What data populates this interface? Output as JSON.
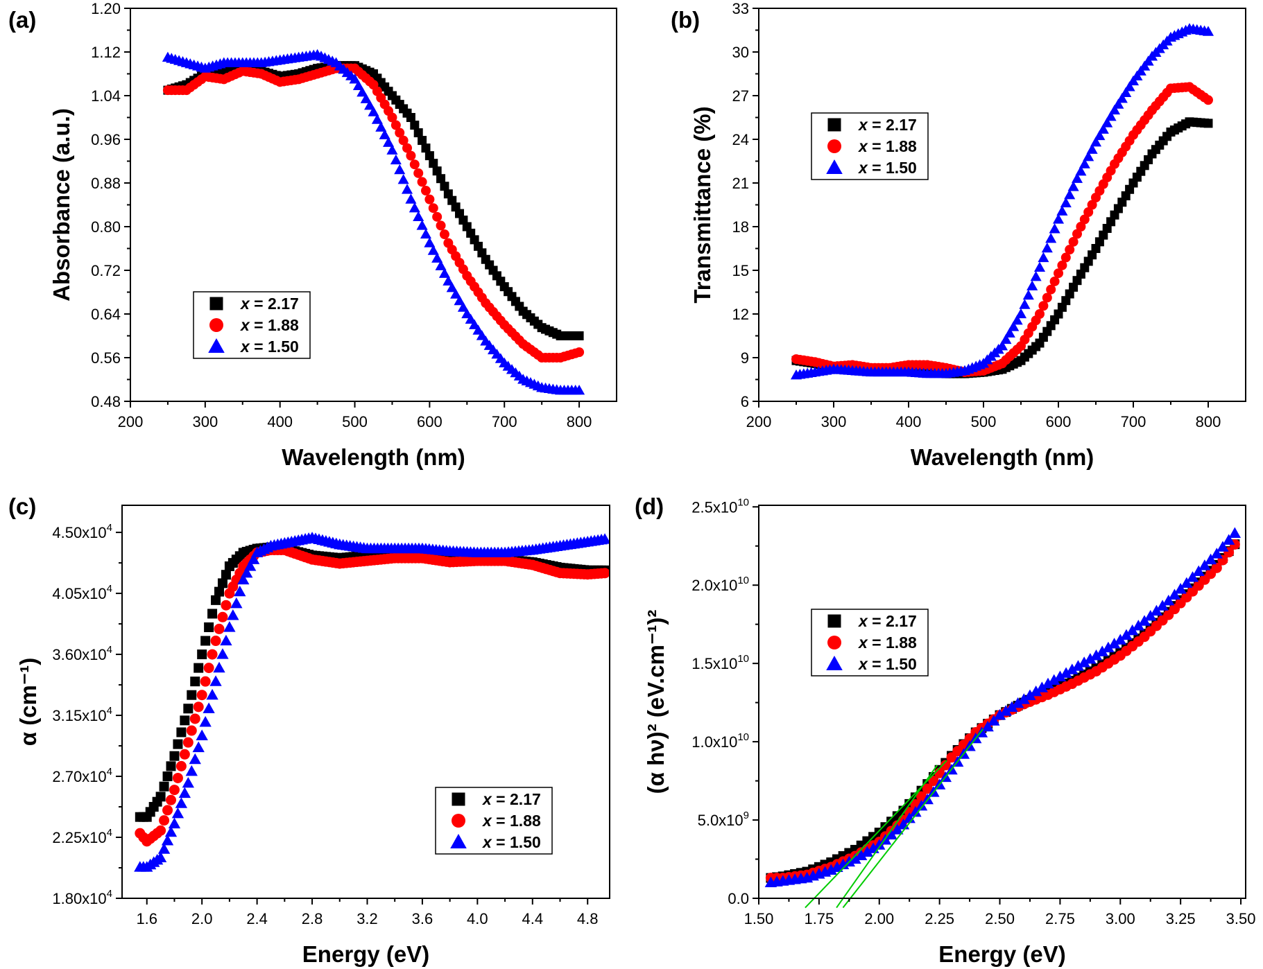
{
  "chart_data": [
    {
      "panel_label": "(a)",
      "type": "scatter",
      "xlabel": "Wavelength (nm)",
      "ylabel": "Absorbance (a.u.)",
      "xlim": [
        200,
        850
      ],
      "ylim": [
        0.48,
        1.2
      ],
      "xticks": [
        200,
        300,
        400,
        500,
        600,
        700,
        800
      ],
      "xtick_labels": [
        "200",
        "300",
        "400",
        "500",
        "600",
        "700",
        "800"
      ],
      "yticks": [
        0.48,
        0.56,
        0.64,
        0.72,
        0.8,
        0.88,
        0.96,
        1.04,
        1.12,
        1.2
      ],
      "ytick_labels": [
        "0.48",
        "0.56",
        "0.64",
        "0.72",
        "0.80",
        "0.88",
        "0.96",
        "1.04",
        "1.12",
        "1.20"
      ],
      "grid": false,
      "legend_placement": "lower-left",
      "x": [
        250,
        275,
        300,
        325,
        350,
        375,
        400,
        425,
        450,
        475,
        500,
        525,
        550,
        575,
        600,
        625,
        650,
        675,
        700,
        725,
        750,
        775,
        800
      ],
      "series": [
        {
          "name": "x = 2.17",
          "marker": "square",
          "color": "#000000",
          "values": [
            1.05,
            1.06,
            1.08,
            1.085,
            1.09,
            1.085,
            1.075,
            1.08,
            1.09,
            1.095,
            1.095,
            1.08,
            1.04,
            1.0,
            0.93,
            0.86,
            0.8,
            0.74,
            0.69,
            0.645,
            0.615,
            0.6,
            0.6
          ]
        },
        {
          "name": "x = 1.88",
          "marker": "circle",
          "color": "#ff0000",
          "values": [
            1.05,
            1.05,
            1.075,
            1.07,
            1.085,
            1.08,
            1.065,
            1.07,
            1.08,
            1.09,
            1.09,
            1.06,
            1.0,
            0.93,
            0.85,
            0.77,
            0.71,
            0.66,
            0.62,
            0.585,
            0.56,
            0.56,
            0.57
          ]
        },
        {
          "name": "x = 1.50",
          "marker": "triangle",
          "color": "#0000ff",
          "values": [
            1.11,
            1.1,
            1.09,
            1.1,
            1.1,
            1.1,
            1.105,
            1.11,
            1.115,
            1.1,
            1.07,
            1.01,
            0.94,
            0.85,
            0.77,
            0.7,
            0.64,
            0.59,
            0.55,
            0.52,
            0.505,
            0.5,
            0.5
          ]
        }
      ]
    },
    {
      "panel_label": "(b)",
      "type": "scatter",
      "xlabel": "Wavelength (nm)",
      "ylabel": "Transmittance (%)",
      "xlim": [
        200,
        850
      ],
      "ylim": [
        6,
        33
      ],
      "xticks": [
        200,
        300,
        400,
        500,
        600,
        700,
        800
      ],
      "xtick_labels": [
        "200",
        "300",
        "400",
        "500",
        "600",
        "700",
        "800"
      ],
      "yticks": [
        6,
        9,
        12,
        15,
        18,
        21,
        24,
        27,
        30,
        33
      ],
      "ytick_labels": [
        "6",
        "9",
        "12",
        "15",
        "18",
        "21",
        "24",
        "27",
        "30",
        "33"
      ],
      "grid": false,
      "legend_placement": "upper-left",
      "x": [
        250,
        275,
        300,
        325,
        350,
        375,
        400,
        425,
        450,
        475,
        500,
        525,
        550,
        575,
        600,
        625,
        650,
        675,
        700,
        725,
        750,
        775,
        800
      ],
      "series": [
        {
          "name": "x = 2.17",
          "marker": "square",
          "color": "#000000",
          "values": [
            8.8,
            8.6,
            8.3,
            8.2,
            8.1,
            8.1,
            8.1,
            8.0,
            7.9,
            7.9,
            8.0,
            8.2,
            8.8,
            10.0,
            12.0,
            14.3,
            16.5,
            18.8,
            21.0,
            23.0,
            24.5,
            25.2,
            25.1
          ]
        },
        {
          "name": "x = 1.88",
          "marker": "circle",
          "color": "#ff0000",
          "values": [
            8.9,
            8.7,
            8.4,
            8.5,
            8.3,
            8.3,
            8.5,
            8.5,
            8.3,
            8.0,
            8.1,
            8.6,
            9.8,
            12.0,
            14.8,
            17.5,
            20.0,
            22.3,
            24.3,
            26.0,
            27.5,
            27.6,
            26.7
          ]
        },
        {
          "name": "x = 1.50",
          "marker": "triangle",
          "color": "#0000ff",
          "values": [
            7.8,
            8.0,
            8.2,
            8.1,
            8.0,
            8.0,
            8.0,
            7.9,
            7.9,
            8.1,
            8.6,
            9.8,
            12.0,
            15.2,
            18.5,
            21.3,
            23.8,
            26.0,
            28.0,
            29.7,
            31.0,
            31.6,
            31.4
          ]
        }
      ]
    },
    {
      "panel_label": "(c)",
      "type": "scatter",
      "xlabel": "Energy (eV)",
      "ylabel": "α (cm⁻¹)",
      "y_scale_factor": 10000,
      "xlim": [
        1.42,
        4.96
      ],
      "ylim": [
        1.8,
        4.7
      ],
      "xticks": [
        1.6,
        2.0,
        2.4,
        2.8,
        3.2,
        3.6,
        4.0,
        4.4,
        4.8
      ],
      "xtick_labels": [
        "1.6",
        "2.0",
        "2.4",
        "2.8",
        "3.2",
        "3.6",
        "4.0",
        "4.4",
        "4.8"
      ],
      "yticks": [
        1.8,
        2.25,
        2.7,
        3.15,
        3.6,
        4.05,
        4.5
      ],
      "ytick_labels": [
        "1.80x10^4",
        "2.25x10^4",
        "2.70x10^4",
        "3.15x10^4",
        "3.60x10^4",
        "4.05x10^4",
        "4.50x10^4"
      ],
      "grid": false,
      "legend_placement": "lower-right",
      "x": [
        1.55,
        1.6,
        1.7,
        1.8,
        1.9,
        2.0,
        2.1,
        2.2,
        2.3,
        2.4,
        2.5,
        2.6,
        2.8,
        3.0,
        3.2,
        3.4,
        3.6,
        3.8,
        4.0,
        4.2,
        4.4,
        4.6,
        4.8,
        4.93
      ],
      "series": [
        {
          "name": "x = 2.17",
          "marker": "square",
          "color": "#000000",
          "values": [
            2.4,
            2.4,
            2.55,
            2.85,
            3.2,
            3.6,
            4.0,
            4.25,
            4.35,
            4.38,
            4.39,
            4.38,
            4.33,
            4.31,
            4.33,
            4.35,
            4.35,
            4.33,
            4.31,
            4.3,
            4.28,
            4.24,
            4.22,
            4.22
          ]
        },
        {
          "name": "x = 1.88",
          "marker": "circle",
          "color": "#ff0000",
          "values": [
            2.28,
            2.22,
            2.3,
            2.6,
            2.95,
            3.3,
            3.7,
            4.05,
            4.25,
            4.35,
            4.37,
            4.37,
            4.3,
            4.27,
            4.29,
            4.31,
            4.31,
            4.28,
            4.29,
            4.29,
            4.26,
            4.2,
            4.19,
            4.2
          ]
        },
        {
          "name": "x = 1.50",
          "marker": "triangle",
          "color": "#0000ff",
          "values": [
            2.03,
            2.03,
            2.1,
            2.35,
            2.65,
            3.0,
            3.4,
            3.8,
            4.15,
            4.35,
            4.4,
            4.42,
            4.46,
            4.41,
            4.38,
            4.38,
            4.38,
            4.36,
            4.35,
            4.35,
            4.37,
            4.4,
            4.43,
            4.45
          ]
        }
      ]
    },
    {
      "panel_label": "(d)",
      "type": "scatter",
      "xlabel": "Energy (eV)",
      "ylabel": "(α hν)² (eV.cm⁻¹)²",
      "y_scale_factor": 10000000000,
      "xlim": [
        1.5,
        3.52
      ],
      "ylim": [
        0,
        2.51
      ],
      "xticks": [
        1.5,
        1.75,
        2.0,
        2.25,
        2.5,
        2.75,
        3.0,
        3.25,
        3.5
      ],
      "xtick_labels": [
        "1.50",
        "1.75",
        "2.00",
        "2.25",
        "2.50",
        "2.75",
        "3.00",
        "3.25",
        "3.50"
      ],
      "yticks": [
        0,
        0.5,
        1.0,
        1.5,
        2.0,
        2.5
      ],
      "ytick_labels": [
        "0.0",
        "5.0x10^9",
        "1.0x10^10",
        "1.5x10^10",
        "2.0x10^10",
        "2.5x10^10"
      ],
      "grid": false,
      "legend_placement": "upper-left",
      "x": [
        1.55,
        1.6,
        1.7,
        1.8,
        1.9,
        2.0,
        2.1,
        2.2,
        2.3,
        2.4,
        2.5,
        2.6,
        2.7,
        2.8,
        2.9,
        3.0,
        3.1,
        3.2,
        3.3,
        3.4,
        3.48
      ],
      "series": [
        {
          "name": "x = 2.17",
          "marker": "square",
          "color": "#000000",
          "values": [
            0.13,
            0.14,
            0.17,
            0.23,
            0.31,
            0.42,
            0.56,
            0.73,
            0.91,
            1.06,
            1.17,
            1.25,
            1.32,
            1.39,
            1.47,
            1.57,
            1.69,
            1.83,
            1.98,
            2.13,
            2.27
          ]
        },
        {
          "name": "x = 1.88",
          "marker": "circle",
          "color": "#ff0000",
          "values": [
            0.13,
            0.13,
            0.15,
            0.2,
            0.27,
            0.36,
            0.5,
            0.7,
            0.9,
            1.06,
            1.17,
            1.24,
            1.3,
            1.37,
            1.45,
            1.55,
            1.67,
            1.81,
            1.96,
            2.11,
            2.27
          ]
        },
        {
          "name": "x = 1.50",
          "marker": "triangle",
          "color": "#0000ff",
          "values": [
            0.1,
            0.11,
            0.13,
            0.18,
            0.25,
            0.34,
            0.47,
            0.63,
            0.82,
            1.02,
            1.17,
            1.27,
            1.37,
            1.46,
            1.55,
            1.65,
            1.77,
            1.9,
            2.05,
            2.2,
            2.34
          ]
        }
      ],
      "fit_lines": {
        "color": "#00cc00",
        "lines": [
          {
            "x": [
              1.73,
              2.28
            ],
            "y": [
              0,
              0.88
            ]
          },
          {
            "x": [
              1.85,
              2.24
            ],
            "y": [
              0,
              0.85
            ]
          },
          {
            "x": [
              1.88,
              2.43
            ],
            "y": [
              0,
              1.08
            ]
          }
        ]
      }
    }
  ]
}
